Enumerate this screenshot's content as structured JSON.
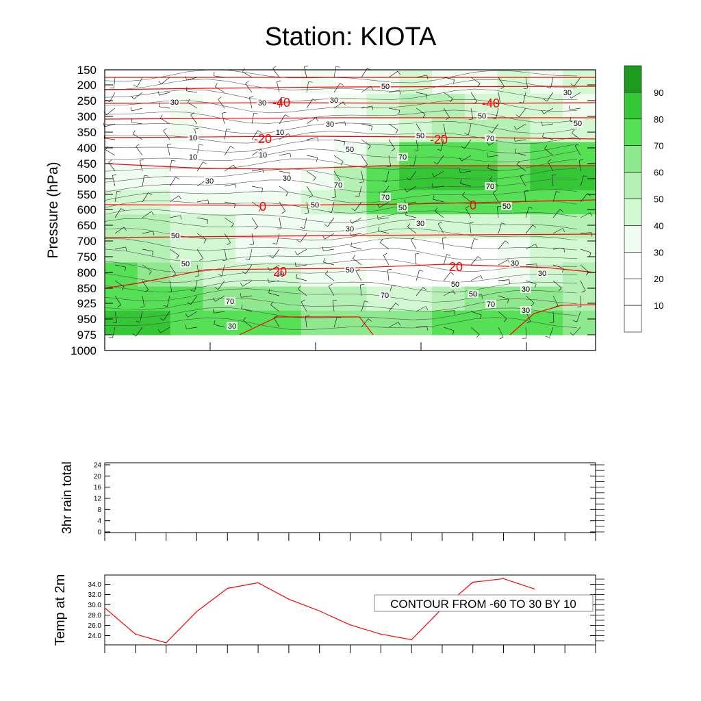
{
  "title": "Station: KIOTA",
  "colors": {
    "temp_contour": "#ff0000",
    "rh_contour": "#000000",
    "frame": "#000000",
    "fill_levels": [
      "#ffffff",
      "#ffffff",
      "#ffffff",
      "#f0fcf0",
      "#d2f8d2",
      "#b4f0b4",
      "#8ee88e",
      "#55e055",
      "#34c634",
      "#1e9a1e"
    ]
  },
  "chart_data": [
    {
      "type": "contour",
      "name": "pressure-time cross section",
      "ylabel": "Pressure (hPa)",
      "y_ticks": [
        "150",
        "200",
        "250",
        "300",
        "350",
        "400",
        "450",
        "500",
        "550",
        "600",
        "650",
        "700",
        "750",
        "800",
        "850",
        "925",
        "950",
        "975",
        "1000"
      ],
      "rh_fill_field": [
        [
          10,
          15,
          20,
          20,
          20,
          20,
          30,
          25,
          35,
          40,
          35,
          35,
          40,
          35,
          40
        ],
        [
          20,
          25,
          30,
          25,
          20,
          20,
          25,
          35,
          45,
          55,
          50,
          45,
          45,
          40,
          35
        ],
        [
          20,
          25,
          30,
          20,
          15,
          10,
          15,
          25,
          35,
          45,
          50,
          50,
          50,
          45,
          40
        ],
        [
          15,
          15,
          10,
          10,
          5,
          10,
          20,
          35,
          55,
          70,
          75,
          70,
          65,
          70,
          70
        ],
        [
          30,
          30,
          25,
          20,
          20,
          25,
          35,
          55,
          75,
          85,
          85,
          80,
          70,
          80,
          85
        ],
        [
          45,
          40,
          35,
          30,
          30,
          35,
          45,
          55,
          70,
          75,
          75,
          70,
          70,
          75,
          75
        ],
        [
          50,
          55,
          45,
          40,
          35,
          35,
          35,
          35,
          40,
          40,
          45,
          45,
          45,
          50,
          50
        ],
        [
          55,
          50,
          45,
          40,
          35,
          30,
          30,
          25,
          20,
          20,
          20,
          25,
          30,
          40,
          45
        ],
        [
          70,
          65,
          55,
          45,
          40,
          40,
          35,
          30,
          25,
          20,
          20,
          25,
          35,
          45,
          50
        ],
        [
          75,
          75,
          70,
          65,
          65,
          60,
          55,
          50,
          45,
          45,
          55,
          60,
          60,
          60,
          55
        ],
        [
          80,
          80,
          75,
          70,
          70,
          70,
          65,
          60,
          60,
          65,
          70,
          75,
          75,
          70,
          60
        ]
      ],
      "rh_colorbar": {
        "labels": [
          "10",
          "20",
          "30",
          "40",
          "50",
          "60",
          "70",
          "80",
          "90"
        ]
      },
      "temp_contour_range": {
        "min": -60,
        "max": 30,
        "step": 10
      },
      "rh_line_labels": [
        "30",
        "30",
        "30",
        "50",
        "30",
        "30",
        "10",
        "10",
        "10",
        "10",
        "30",
        "30",
        "50",
        "50",
        "50",
        "70",
        "70",
        "70",
        "70",
        "70",
        "50",
        "50",
        "30",
        "30",
        "50",
        "50",
        "50",
        "30",
        "30",
        "30",
        "50",
        "50",
        "70",
        "70",
        "70",
        "50",
        "30",
        "30",
        "30",
        "50"
      ],
      "temp_labels": [
        "-40",
        "-40",
        "-20",
        "-20",
        "0",
        "0",
        "20",
        "20"
      ],
      "info_label": "CONTOUR FROM -60 TO 30 BY 10"
    },
    {
      "type": "line",
      "name": "3hr rain total",
      "ylabel": "3hr rain total",
      "y_ticks": [
        "0",
        "4",
        "8",
        "12",
        "16",
        "20",
        "24"
      ],
      "ylim": [
        0,
        24
      ],
      "values": []
    },
    {
      "type": "line",
      "name": "Temp at 2m",
      "ylabel": "Temp at 2m",
      "y_ticks": [
        "24.0",
        "26.0",
        "28.0",
        "30.0",
        "32.0",
        "34.0"
      ],
      "ylim": [
        22.2,
        35.8
      ],
      "x": [
        0,
        1,
        2,
        3,
        4,
        5,
        6,
        7,
        8,
        9,
        10,
        11,
        12,
        13,
        14
      ],
      "values": [
        29.4,
        24.3,
        22.6,
        28.7,
        33.2,
        34.3,
        31.1,
        28.8,
        26.1,
        24.3,
        23.2,
        29.3,
        34.4,
        35.1,
        33.1
      ]
    }
  ]
}
